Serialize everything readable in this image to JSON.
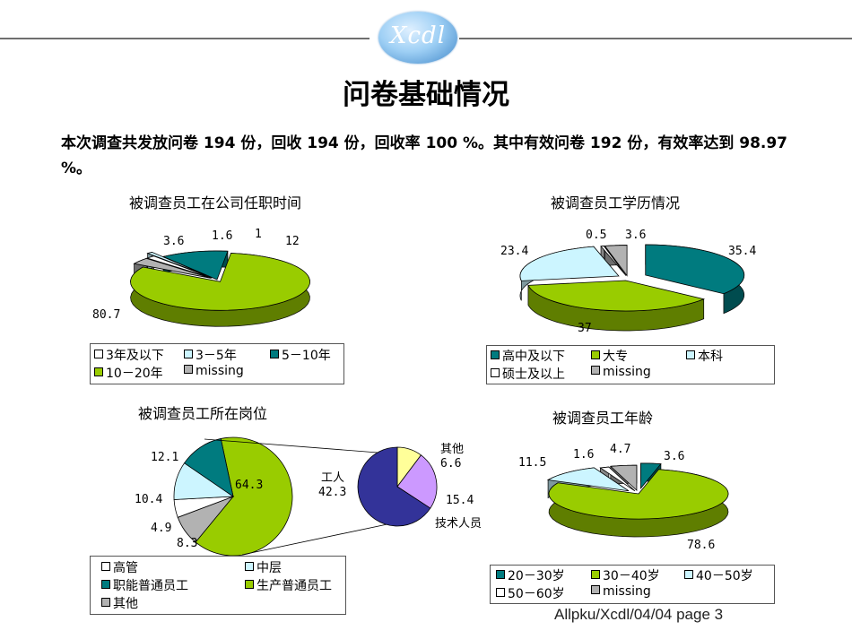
{
  "slide": {
    "logo_text": "Xcdl",
    "title": "问卷基础情况",
    "intro": "本次调查共发放问卷 194 份，回收 194 份，回收率 100 %。其中有效问卷 192 份，有效率达到 98.97 %。",
    "footer": "Allpku/Xcdl/04/04      page 3"
  },
  "chart_data": [
    {
      "type": "pie",
      "title": "被调查员工在公司任职时间",
      "categories": [
        "3年及以下",
        "3－5年",
        "5－10年",
        "10－20年",
        "missing"
      ],
      "values": [
        1.6,
        1,
        12,
        80.7,
        3.6
      ],
      "value_labels": [
        "1.6",
        "1",
        "12",
        "80.7",
        "3.6"
      ],
      "colors": [
        "#ffffff",
        "#ccf5ff",
        "#007b7f",
        "#99cc00",
        "#b2b2b2"
      ],
      "legend_position": "bottom"
    },
    {
      "type": "pie",
      "title": "被调查员工学历情况",
      "categories": [
        "高中及以下",
        "大专",
        "本科",
        "硕士及以上",
        "missing"
      ],
      "values": [
        35.4,
        37,
        23.4,
        0.5,
        3.6
      ],
      "value_labels": [
        "35.4",
        "37",
        "23.4",
        "0.5",
        "3.6"
      ],
      "colors": [
        "#007b7f",
        "#99cc00",
        "#ccf5ff",
        "#ffffff",
        "#b2b2b2"
      ],
      "legend_position": "bottom"
    },
    {
      "type": "pie",
      "title": "被调查员工所在岗位",
      "categories": [
        "高管",
        "中层",
        "职能普通员工",
        "生产普通员工",
        "其他"
      ],
      "values": [
        4.9,
        10.4,
        12.1,
        64.3,
        8.3
      ],
      "value_labels": [
        "4.9",
        "10.4",
        "12.1",
        "64.3",
        "8.3"
      ],
      "colors": [
        "#ffffff",
        "#ccf5ff",
        "#007b7f",
        "#99cc00",
        "#b2b2b2"
      ],
      "legend_position": "bottom",
      "breakdown": {
        "of_category": "生产普通员工",
        "categories": [
          "工人",
          "其他",
          "技术人员"
        ],
        "values": [
          42.3,
          6.6,
          15.4
        ],
        "value_labels": [
          "42.3",
          "6.6",
          "15.4"
        ],
        "colors": [
          "#333399",
          "#ffff99",
          "#cc99ff"
        ]
      }
    },
    {
      "type": "pie",
      "title": "被调查员工年龄",
      "categories": [
        "20－30岁",
        "30－40岁",
        "40－50岁",
        "50－60岁",
        "missing"
      ],
      "values": [
        3.6,
        78.6,
        11.5,
        1.6,
        4.7
      ],
      "value_labels": [
        "3.6",
        "78.6",
        "11.5",
        "1.6",
        "4.7"
      ],
      "colors": [
        "#007b7f",
        "#99cc00",
        "#ccf5ff",
        "#ffffff",
        "#b2b2b2"
      ],
      "legend_position": "bottom"
    }
  ]
}
